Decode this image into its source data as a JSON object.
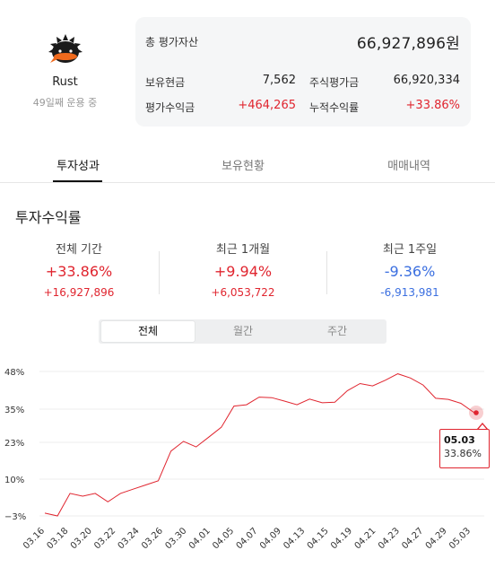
{
  "profile": {
    "name": "Rust",
    "subtitle": "49일째 운용 중"
  },
  "summary": {
    "total_label": "총 평가자산",
    "total_value": "66,927,896원",
    "cash_label": "보유현금",
    "cash_value": "7,562",
    "stock_label": "주식평가금",
    "stock_value": "66,920,334",
    "gain_label": "평가수익금",
    "gain_value": "+464,265",
    "cum_label": "누적수익률",
    "cum_value": "+33.86%"
  },
  "tabs": [
    {
      "label": "투자성과",
      "active": true
    },
    {
      "label": "보유현황",
      "active": false
    },
    {
      "label": "매매내역",
      "active": false
    }
  ],
  "section_title": "투자수익률",
  "returns": [
    {
      "label": "전체 기간",
      "percent": "+33.86%",
      "amount": "+16,927,896",
      "sign": "red"
    },
    {
      "label": "최근 1개월",
      "percent": "+9.94%",
      "amount": "+6,053,722",
      "sign": "red"
    },
    {
      "label": "최근 1주일",
      "percent": "-9.36%",
      "amount": "-6,913,981",
      "sign": "blue"
    }
  ],
  "segments": [
    {
      "label": "전체",
      "active": true
    },
    {
      "label": "월간",
      "active": false
    },
    {
      "label": "주간",
      "active": false
    }
  ],
  "chart_data": {
    "type": "line",
    "line_color": "#e0252f",
    "y_ticks": [
      48,
      35,
      23,
      10,
      -3
    ],
    "y_tick_labels": [
      "48%",
      "35%",
      "23%",
      "10%",
      "−3%"
    ],
    "ylim": [
      -3,
      48
    ],
    "x_tick_labels": [
      "03.16",
      "03.18",
      "03.20",
      "03.22",
      "03.24",
      "03.26",
      "03.30",
      "04.01",
      "04.05",
      "04.07",
      "04.09",
      "04.13",
      "04.15",
      "04.19",
      "04.21",
      "04.23",
      "04.27",
      "04.29",
      "05.03"
    ],
    "points": [
      {
        "date": "03.16",
        "value": -2
      },
      {
        "date": "03.17",
        "value": -3
      },
      {
        "date": "03.18",
        "value": 5
      },
      {
        "date": "03.19",
        "value": 4
      },
      {
        "date": "03.20",
        "value": 5
      },
      {
        "date": "03.21",
        "value": 2
      },
      {
        "date": "03.22",
        "value": 5
      },
      {
        "date": "03.23",
        "value": 6.5
      },
      {
        "date": "03.24",
        "value": 8
      },
      {
        "date": "03.25",
        "value": 9.5
      },
      {
        "date": "03.26",
        "value": 20
      },
      {
        "date": "03.27",
        "value": 23.5
      },
      {
        "date": "03.30",
        "value": 21.5
      },
      {
        "date": "03.31",
        "value": 25
      },
      {
        "date": "04.01",
        "value": 28.5
      },
      {
        "date": "04.02",
        "value": 36
      },
      {
        "date": "04.05",
        "value": 36.5
      },
      {
        "date": "04.06",
        "value": 39.2
      },
      {
        "date": "04.07",
        "value": 39
      },
      {
        "date": "04.08",
        "value": 37.8
      },
      {
        "date": "04.09",
        "value": 36.5
      },
      {
        "date": "04.12",
        "value": 38.5
      },
      {
        "date": "04.13",
        "value": 37.2
      },
      {
        "date": "04.14",
        "value": 37.4
      },
      {
        "date": "04.15",
        "value": 41.5
      },
      {
        "date": "04.16",
        "value": 44
      },
      {
        "date": "04.19",
        "value": 43.2
      },
      {
        "date": "04.20",
        "value": 45.2
      },
      {
        "date": "04.21",
        "value": 47.5
      },
      {
        "date": "04.22",
        "value": 46
      },
      {
        "date": "04.23",
        "value": 43.5
      },
      {
        "date": "04.26",
        "value": 38.8
      },
      {
        "date": "04.27",
        "value": 38.4
      },
      {
        "date": "04.28",
        "value": 37
      },
      {
        "date": "04.29",
        "value": 33.86
      }
    ],
    "highlight": {
      "date": "05.03",
      "value_label": "33.86%"
    }
  }
}
